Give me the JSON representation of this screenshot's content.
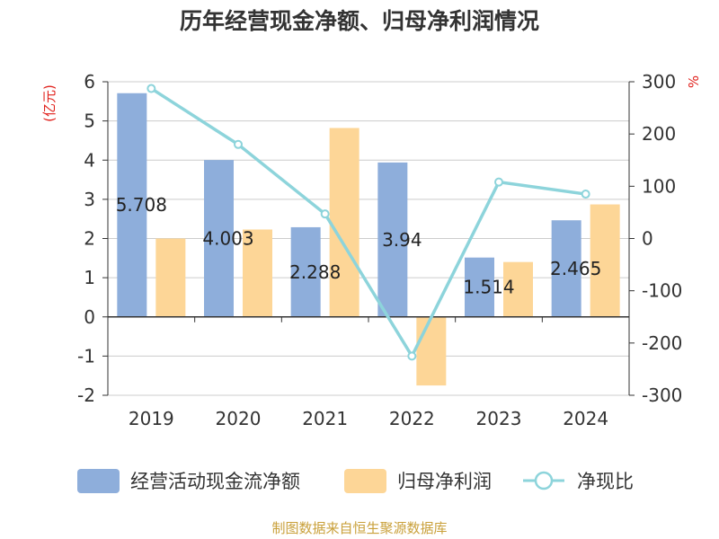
{
  "chart_data": {
    "type": "bar",
    "title": "历年经营现金净额、归母净利润情况",
    "categories": [
      "2019",
      "2020",
      "2021",
      "2022",
      "2023",
      "2024"
    ],
    "series": [
      {
        "name": "经营活动现金流净额",
        "type": "bar",
        "axis": "left",
        "values": [
          5.708,
          4.003,
          2.288,
          3.94,
          1.514,
          2.465
        ],
        "labels": [
          "5.708",
          "4.003",
          "2.288",
          "3.94",
          "1.514",
          "2.465"
        ],
        "color": "#8eaedb"
      },
      {
        "name": "归母净利润",
        "type": "bar",
        "axis": "left",
        "values": [
          2.0,
          2.23,
          4.82,
          -1.75,
          1.4,
          2.87
        ],
        "color": "#fdd697"
      },
      {
        "name": "净现比",
        "type": "line",
        "axis": "right",
        "values": [
          287,
          180,
          47,
          -225,
          108,
          85
        ],
        "color": "#8dd4db"
      }
    ],
    "left_axis": {
      "unit": "(亿元)",
      "ylim": [
        -2,
        6
      ],
      "ticks": [
        -2,
        -1,
        0,
        1,
        2,
        3,
        4,
        5,
        6
      ]
    },
    "right_axis": {
      "unit": "%",
      "ylim": [
        -300,
        300
      ],
      "ticks": [
        -300,
        -200,
        -100,
        0,
        100,
        200,
        300
      ]
    },
    "grid": true,
    "legend_position": "bottom"
  },
  "source_note": "制图数据来自恒生聚源数据库",
  "colors": {
    "unit": "#e0201b",
    "source": "#c9a03a",
    "axis": "#333333",
    "grid": "#cccccc"
  }
}
